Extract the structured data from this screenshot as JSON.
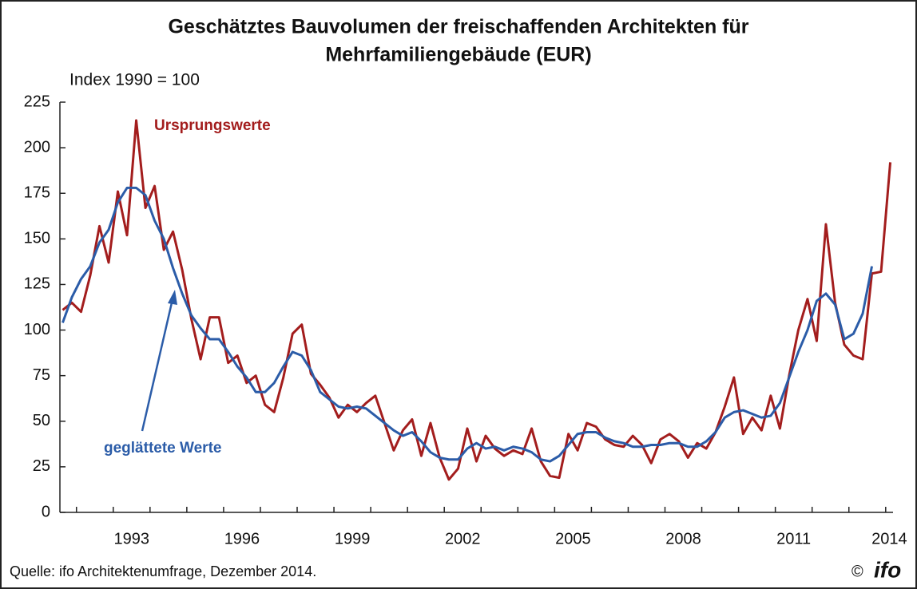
{
  "chart_data": {
    "type": "line",
    "title": [
      "Geschätztes Bauvolumen der freischaffenden Architekten für",
      "Mehrfamiliengebäude (EUR)"
    ],
    "subtitle": "Index 1990 = 100",
    "source": "Quelle: ifo Architektenumfrage, Dezember 2014.",
    "copyright": "©",
    "logo": "ifo",
    "annotations": [
      {
        "text": "Ursprungswerte",
        "series": 0
      },
      {
        "text": "geglättete Werte",
        "series": 1
      }
    ],
    "xlim": [
      1991.55,
      2014.2
    ],
    "xticks": [
      {
        "value": 1993.5,
        "label": "1993"
      },
      {
        "value": 1996.5,
        "label": "1996"
      },
      {
        "value": 1999.5,
        "label": "1999"
      },
      {
        "value": 2002.5,
        "label": "2002"
      },
      {
        "value": 2005.5,
        "label": "2005"
      },
      {
        "value": 2008.5,
        "label": "2008"
      },
      {
        "value": 2011.5,
        "label": "2011"
      },
      {
        "value": 2014.1,
        "label": "2014"
      }
    ],
    "ylim": [
      0,
      225
    ],
    "yticks": [
      0,
      25,
      50,
      75,
      100,
      125,
      150,
      175,
      200,
      225
    ],
    "grid": false,
    "x": [
      1991.625,
      1991.875,
      1992.125,
      1992.375,
      1992.625,
      1992.875,
      1993.125,
      1993.375,
      1993.625,
      1993.875,
      1994.125,
      1994.375,
      1994.625,
      1994.875,
      1995.125,
      1995.375,
      1995.625,
      1995.875,
      1996.125,
      1996.375,
      1996.625,
      1996.875,
      1997.125,
      1997.375,
      1997.625,
      1997.875,
      1998.125,
      1998.375,
      1998.625,
      1998.875,
      1999.125,
      1999.375,
      1999.625,
      1999.875,
      2000.125,
      2000.375,
      2000.625,
      2000.875,
      2001.125,
      2001.375,
      2001.625,
      2001.875,
      2002.125,
      2002.375,
      2002.625,
      2002.875,
      2003.125,
      2003.375,
      2003.625,
      2003.875,
      2004.125,
      2004.375,
      2004.625,
      2004.875,
      2005.125,
      2005.375,
      2005.625,
      2005.875,
      2006.125,
      2006.375,
      2006.625,
      2006.875,
      2007.125,
      2007.375,
      2007.625,
      2007.875,
      2008.125,
      2008.375,
      2008.625,
      2008.875,
      2009.125,
      2009.375,
      2009.625,
      2009.875,
      2010.125,
      2010.375,
      2010.625,
      2010.875,
      2011.125,
      2011.375,
      2011.625,
      2011.875,
      2012.125,
      2012.375,
      2012.625,
      2012.875,
      2013.125,
      2013.375,
      2013.625,
      2013.875,
      2014.125
    ],
    "series": [
      {
        "name": "Ursprungswerte",
        "color": "#a31d1d",
        "values": [
          111,
          115,
          110,
          130,
          157,
          137,
          176,
          152,
          215,
          167,
          179,
          144,
          154,
          133,
          106,
          84,
          107,
          107,
          82,
          86,
          71,
          75,
          59,
          55,
          74,
          98,
          103,
          76,
          70,
          63,
          52,
          59,
          55,
          60,
          64,
          49,
          34,
          45,
          51,
          31,
          49,
          30,
          18,
          24,
          46,
          28,
          42,
          35,
          31,
          34,
          32,
          46,
          28,
          20,
          19,
          43,
          34,
          49,
          47,
          40,
          37,
          36,
          42,
          37,
          27,
          40,
          43,
          39,
          30,
          38,
          35,
          44,
          58,
          74,
          43,
          52,
          45,
          64,
          46,
          75,
          100,
          117,
          94,
          158,
          115,
          92,
          86,
          84,
          131,
          132,
          192
        ]
      },
      {
        "name": "geglättete Werte",
        "color": "#2b5ca8",
        "values": [
          104,
          118,
          128,
          135,
          148,
          155,
          170,
          178,
          178,
          174,
          160,
          150,
          134,
          120,
          108,
          101,
          95,
          95,
          88,
          80,
          74,
          66,
          66,
          71,
          80,
          88,
          86,
          78,
          66,
          62,
          58,
          57,
          58,
          57,
          53,
          49,
          45,
          42,
          44,
          39,
          33,
          30,
          29,
          29,
          35,
          38,
          35,
          36,
          34,
          36,
          35,
          33,
          29,
          28,
          31,
          37,
          43,
          44,
          44,
          41,
          39,
          38,
          36,
          36,
          37,
          37,
          38,
          38,
          36,
          36,
          39,
          44,
          52,
          55,
          56,
          54,
          52,
          53,
          60,
          74,
          88,
          100,
          116,
          120,
          114,
          95,
          98,
          109,
          135,
          null,
          null
        ]
      }
    ]
  }
}
